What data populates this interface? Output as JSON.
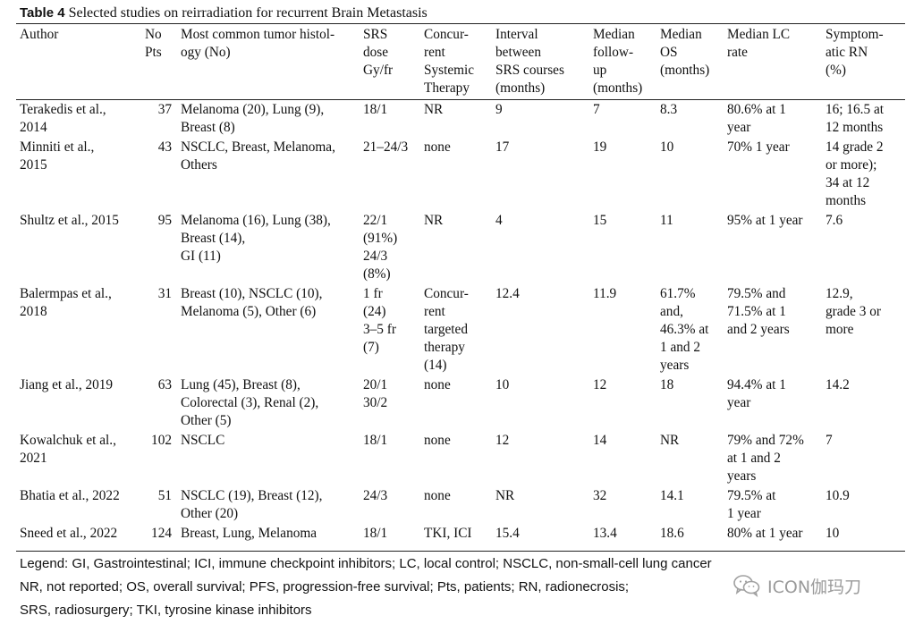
{
  "caption": {
    "label": "Table 4",
    "title": "Selected studies on reirradiation for recurrent Brain Metastasis"
  },
  "columns": [
    [
      "Author"
    ],
    [
      "No",
      "Pts"
    ],
    [
      "Most common tumor histol-",
      "ogy (No)"
    ],
    [
      "SRS",
      "dose",
      "Gy/fr"
    ],
    [
      "Concur-",
      "rent",
      "Systemic",
      "Therapy"
    ],
    [
      "Interval",
      "between",
      "SRS courses",
      "(months)"
    ],
    [
      "Median",
      "follow-",
      "up",
      "(months)"
    ],
    [
      "Median",
      "OS",
      "(months)"
    ],
    [
      "Median LC",
      "rate"
    ],
    [
      "Symptom-",
      "atic RN",
      "(%)"
    ]
  ],
  "rows": [
    [
      [
        "Terakedis et al.,",
        "2014"
      ],
      [
        "37"
      ],
      [
        "Melanoma (20), Lung (9),",
        "Breast (8)"
      ],
      [
        "18/1"
      ],
      [
        "NR"
      ],
      [
        "9"
      ],
      [
        "7"
      ],
      [
        "8.3"
      ],
      [
        "80.6% at 1",
        "year"
      ],
      [
        "16; 16.5 at",
        "12 months"
      ]
    ],
    [
      [
        "Minniti et al.,",
        "2015"
      ],
      [
        "43"
      ],
      [
        "NSCLC, Breast, Melanoma,",
        "Others"
      ],
      [
        "21–24/3"
      ],
      [
        "none"
      ],
      [
        "17"
      ],
      [
        "19"
      ],
      [
        "10"
      ],
      [
        "70% 1 year"
      ],
      [
        "14 grade 2",
        "or more);",
        "34 at 12",
        "months"
      ]
    ],
    [
      [
        "Shultz et al., 2015"
      ],
      [
        "95"
      ],
      [
        "Melanoma (16), Lung (38),",
        "Breast (14),",
        "GI (11)"
      ],
      [
        "22/1",
        "(91%)",
        "24/3",
        "(8%)"
      ],
      [
        "NR"
      ],
      [
        "4"
      ],
      [
        "15"
      ],
      [
        "11"
      ],
      [
        "95% at 1 year"
      ],
      [
        "7.6"
      ]
    ],
    [
      [
        "Balermpas et al.,",
        "2018"
      ],
      [
        "31"
      ],
      [
        "Breast (10), NSCLC (10),",
        "Melanoma (5), Other (6)"
      ],
      [
        "1 fr",
        "(24)",
        "3–5 fr",
        "(7)"
      ],
      [
        "Concur-",
        "rent",
        "targeted",
        "therapy",
        "(14)"
      ],
      [
        "12.4"
      ],
      [
        "11.9"
      ],
      [
        "61.7%",
        "and,",
        "46.3% at",
        "1 and 2",
        "years"
      ],
      [
        "79.5% and",
        "71.5% at 1",
        "and 2 years"
      ],
      [
        "12.9,",
        "grade 3 or",
        "more"
      ]
    ],
    [
      [
        "Jiang et al., 2019"
      ],
      [
        "63"
      ],
      [
        "Lung (45), Breast (8),",
        "Colorectal (3), Renal (2),",
        "Other (5)"
      ],
      [
        "20/1",
        "30/2"
      ],
      [
        "none"
      ],
      [
        "10"
      ],
      [
        "12"
      ],
      [
        "18"
      ],
      [
        "94.4% at 1",
        "year"
      ],
      [
        "14.2"
      ]
    ],
    [
      [
        "Kowalchuk et al.,",
        "2021"
      ],
      [
        "102"
      ],
      [
        "NSCLC"
      ],
      [
        "18/1"
      ],
      [
        "none"
      ],
      [
        "12"
      ],
      [
        "14"
      ],
      [
        "NR"
      ],
      [
        "79% and 72%",
        "at 1 and 2",
        "years"
      ],
      [
        "7"
      ]
    ],
    [
      [
        "Bhatia et al., 2022"
      ],
      [
        "51"
      ],
      [
        "NSCLC (19), Breast (12),",
        "Other (20)"
      ],
      [
        "24/3"
      ],
      [
        "none"
      ],
      [
        "NR"
      ],
      [
        "32"
      ],
      [
        "14.1"
      ],
      [
        "79.5% at",
        "1 year"
      ],
      [
        "10.9"
      ]
    ],
    [
      [
        "Sneed et al., 2022"
      ],
      [
        "124"
      ],
      [
        "Breast, Lung, Melanoma"
      ],
      [
        "18/1"
      ],
      [
        "TKI, ICI"
      ],
      [
        "15.4"
      ],
      [
        "13.4"
      ],
      [
        "18.6"
      ],
      [
        "80% at 1 year"
      ],
      [
        "10"
      ]
    ]
  ],
  "legend": [
    "Legend: GI, Gastrointestinal; ICI, immune checkpoint inhibitors; LC, local control; NSCLC, non-small-cell lung cancer",
    "NR, not reported; OS, overall survival; PFS, progression-free survival; Pts, patients; RN, radionecrosis;",
    "SRS, radiosurgery; TKI, tyrosine kinase inhibitors"
  ],
  "watermark": {
    "text": "ICON伽玛刀",
    "icon": "wechat-icon"
  }
}
